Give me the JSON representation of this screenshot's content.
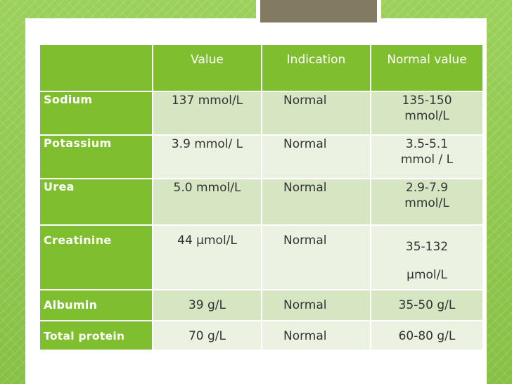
{
  "table": {
    "headers": [
      "",
      "Value",
      "Indication",
      "Normal value"
    ],
    "rows": [
      {
        "name": "Sodium",
        "value": "137 mmol/L",
        "indication": "Normal",
        "normal": "135-150 mmol/L"
      },
      {
        "name": "Potassium",
        "value": "3.9 mmol/ L",
        "indication": "Normal",
        "normal": "3.5-5.1 mmol / L"
      },
      {
        "name": "Urea",
        "value": "5.0 mmol/L",
        "indication": "Normal",
        "normal": "2.9-7.9 mmol/L"
      },
      {
        "name": "Creatinine",
        "value": "44 µmol/L",
        "indication": "Normal",
        "normal": "35-132 µmol/L"
      },
      {
        "name": "Albumin",
        "value": "39 g/L",
        "indication": "Normal",
        "normal": "35-50 g/L"
      },
      {
        "name": "Total protein",
        "value": "70 g/L",
        "indication": "Normal",
        "normal": "60-80 g/L"
      }
    ]
  },
  "colors": {
    "background_green": "#8ec64a",
    "header_green": "#7fbf2f",
    "row_odd": "#d6e6c3",
    "row_even": "#ebf2e1",
    "title_box": "#827b62"
  }
}
